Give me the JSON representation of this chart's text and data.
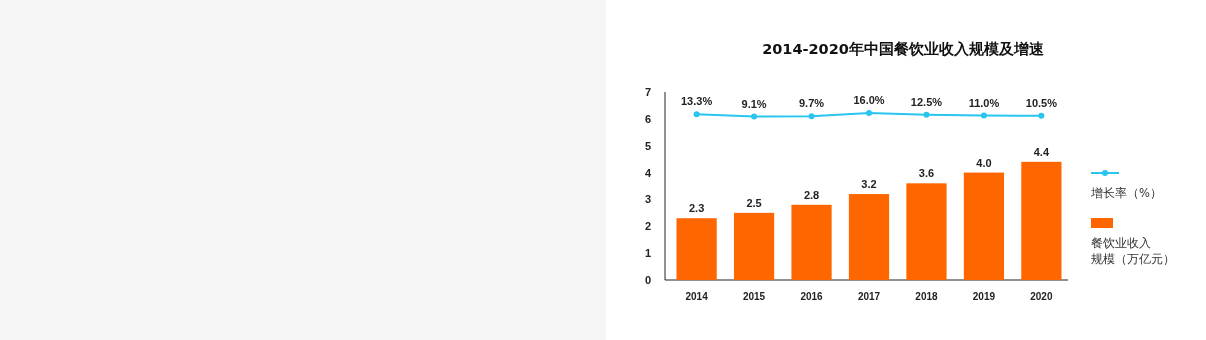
{
  "chart_data": {
    "type": "bar",
    "title": "2014-2020年中国餐饮业收入规模及增速",
    "categories": [
      "2014",
      "2015",
      "2016",
      "2017",
      "2018",
      "2019",
      "2020"
    ],
    "series": [
      {
        "name": "增长率（%）",
        "type": "line",
        "axis": "y2",
        "color": "#29c5ee",
        "values": [
          13.3,
          9.1,
          9.7,
          16.0,
          12.5,
          11.0,
          10.5
        ],
        "value_labels": [
          "13.3%",
          "9.1%",
          "9.7%",
          "16.0%",
          "12.5%",
          "11.0%",
          "10.5%"
        ]
      },
      {
        "name": "餐饮业收入规模（万亿元）",
        "color": "#ff6600",
        "values": [
          2.3,
          2.5,
          2.8,
          3.2,
          3.6,
          4.0,
          4.4
        ],
        "value_labels": [
          "2.3",
          "2.5",
          "2.8",
          "3.2",
          "3.6",
          "4.0",
          "4.4"
        ]
      }
    ],
    "ylim": [
      0,
      7
    ],
    "yticks": [
      0,
      1,
      2,
      3,
      4,
      5,
      6,
      7
    ],
    "legend": "right",
    "marker": "circle",
    "grid": false
  }
}
